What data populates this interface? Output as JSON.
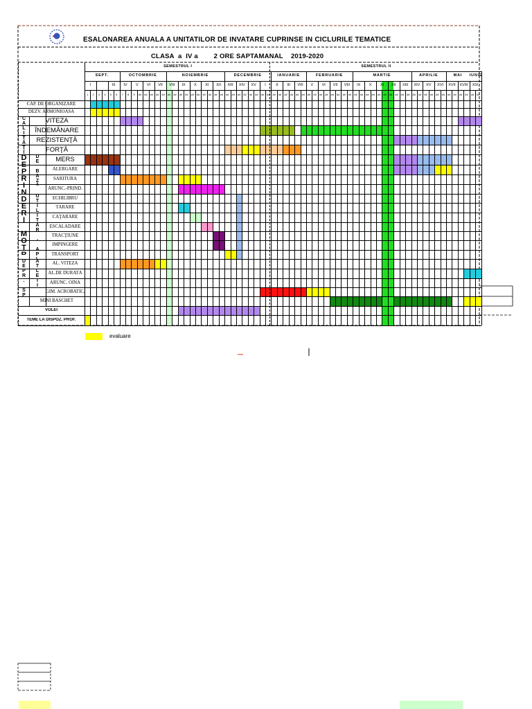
{
  "document": {
    "title": "ESALONAREA ANUALA A UNITATILOR DE INVATARE CUPRINSE IN CICLURILE TEMATICE",
    "subtitle": "CLASA  a  IV a        2 ORE SAPTAMANAL    2019-2020",
    "semesters": [
      "SEMESTRUL I",
      "SEMESTRUL II"
    ],
    "months": [
      "SEPT.",
      "OCTOMBRIE",
      "NOIEMBRIE",
      "DECEMBRIE",
      "IANUARIE",
      "FEBRUARIE",
      "MARTIE",
      "APRILIE",
      "MAI",
      "IUNIE"
    ],
    "weeks": [
      "I",
      "",
      "III",
      "IV",
      "V",
      "VI",
      "VII",
      "VIII",
      "IX",
      "X",
      "XI",
      "XII",
      "XIII",
      "XIV",
      "XV",
      "I",
      "II",
      "III",
      "VIII",
      "V",
      "VI",
      "VII",
      "VIII",
      "IX",
      "X",
      "XI",
      "XII",
      "XIII",
      "XIV",
      "XV",
      "XVI",
      "XVII",
      "XVIII",
      "XIX",
      "XX"
    ],
    "days": [
      "1",
      "2",
      "3",
      "4",
      "5",
      "6",
      "7",
      "8",
      "9",
      "##",
      "##",
      "##",
      "##",
      "##",
      "##",
      "##",
      "##",
      "##",
      "##",
      "##",
      "##",
      "##",
      "##",
      "##",
      "##",
      "##",
      "##",
      "##",
      "##",
      "##",
      "##",
      "##",
      "##",
      "##",
      "##",
      "##",
      "##",
      "##",
      "##",
      "##",
      "##",
      "##",
      "##",
      "##",
      "##",
      "##",
      "##",
      "##",
      "##",
      "##",
      "##",
      "##",
      "##",
      "##",
      "##",
      "##",
      "##",
      "##",
      "##",
      "##",
      "##",
      "##",
      "##",
      "##",
      "##",
      "##",
      "##",
      "##",
      "##"
    ],
    "rows": [
      "CAP. DE ORGANIZARE",
      "DEZV. ARMONIOASA",
      "VITEZA",
      "ÎNDEMÂNARE",
      "REZISTENŢĂ",
      "FORŢĂ",
      "MERS",
      "ALERGARE",
      "SARITURA",
      "ARUNC.-PRIND.",
      "ECHILIBRU",
      "TÂRÂRE",
      "CĂŢĂRARE",
      "ESCALADARE",
      "TRACŢIUNE",
      "ÎMPINGERE",
      "TRANSPORT",
      "AL. VITEZĂ",
      "AL.DE DURATĂ",
      "ARUNC. OINA",
      "GIM. ACROBATICA",
      "MINI BASCHET",
      "VOLEI",
      "TEME LA DISPOZ. PROF."
    ],
    "group_labels": [
      "CALITĂŢI MOTRICE",
      "DEPRINDERI MOTRICE",
      "DE BAZĂ",
      "UTILITAR - APLICATIVE",
      "DEPR. SPORTIVE",
      "ATLETISM"
    ],
    "legend": "evaluare"
  },
  "colors": {
    "cyan": "#22ccdd",
    "yellow": "#ffff00",
    "lavender": "#b388ee",
    "olive": "#99bb22",
    "green": "#22dd22",
    "sky": "#99bbee",
    "peach": "#ffcc99",
    "orange": "#ff9922",
    "brown": "#993311",
    "blue": "#3355cc",
    "magenta": "#ee22ee",
    "pink": "#ff99cc",
    "purple": "#771177",
    "lightgreen": "#ccffcc",
    "red": "#ff1111",
    "darkgreen": "#118811",
    "gold": "#ffcc22",
    "palegreen": "#ccffcc"
  }
}
